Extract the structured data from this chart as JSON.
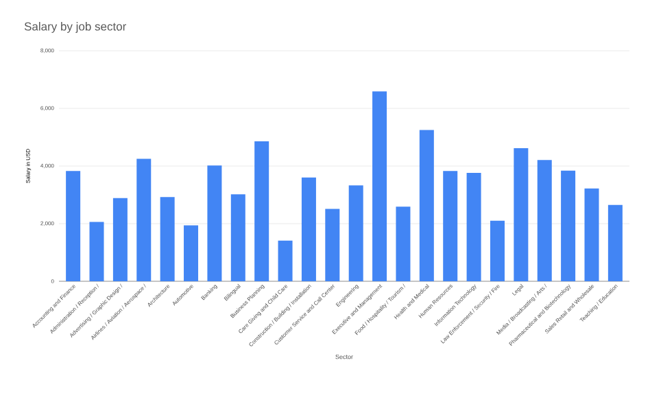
{
  "chart_data": {
    "type": "bar",
    "title": "Salary by job sector",
    "xlabel": "Sector",
    "ylabel": "Salary in USD",
    "categories": [
      "Accounting and Finance",
      "Administration / Reception /",
      "Advertising / Graphic Design /",
      "Airlines / Aviation / Aerospace /",
      "Architecture",
      "Automotive",
      "Banking",
      "Bilingual",
      "Business Planning",
      "Care Giving and Child Care",
      "Construction / Building / Installation",
      "Customer Service and Call Center",
      "Engineering",
      "Executive and Management",
      "Food / Hospitality / Tourism /",
      "Health and Medical",
      "Human Resources",
      "Information Technology",
      "Law Enforcement / Security / Fire",
      "Legal",
      "Media / Broadcasting / Arts /",
      "Pharmaceutical and Biotechnology",
      "Sales Retail and Wholesale",
      "Teaching / Education"
    ],
    "values": [
      3830,
      2060,
      2890,
      4250,
      2920,
      1940,
      4020,
      3020,
      4860,
      1410,
      3600,
      2510,
      3330,
      6590,
      2590,
      5250,
      3830,
      3760,
      2100,
      4620,
      4210,
      3840,
      3220,
      2650
    ],
    "color": "#4285f4",
    "ylim": [
      0,
      8000
    ],
    "yticks": [
      {
        "value": 0,
        "label": "0"
      },
      {
        "value": 2000,
        "label": "2,000"
      },
      {
        "value": 4000,
        "label": "4,000"
      },
      {
        "value": 6000,
        "label": "6,000"
      },
      {
        "value": 8000,
        "label": "8,000"
      }
    ],
    "grid": "y"
  }
}
